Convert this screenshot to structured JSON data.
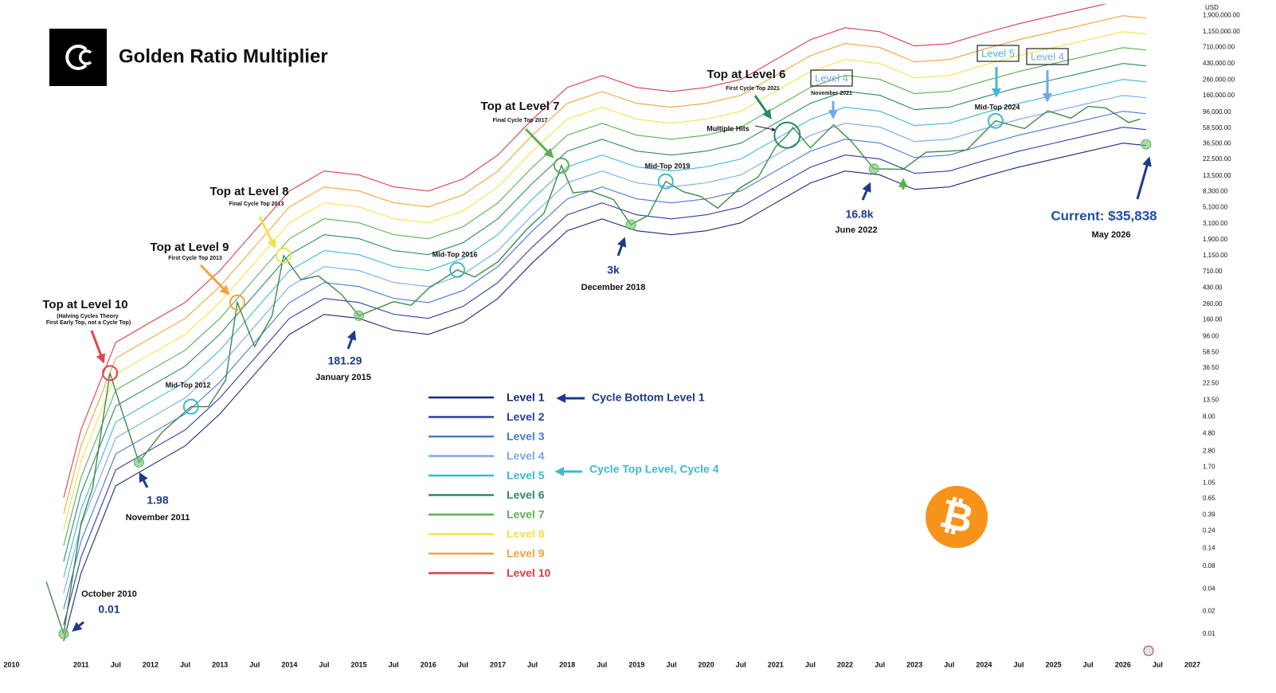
{
  "chart_data": {
    "type": "line",
    "title": "Golden Ratio Multiplier",
    "ylabel": "USD",
    "symbol": "₿",
    "ylog": true,
    "xlim": [
      "2009-11",
      "2027-01"
    ],
    "ylim": [
      0.005,
      2700000
    ],
    "xticks": [
      {
        "value": "2010-01",
        "label": "2010"
      },
      {
        "value": "2011-01",
        "label": "2011"
      },
      {
        "value": "2011-07",
        "label": "Jul"
      },
      {
        "value": "2012-01",
        "label": "2012"
      },
      {
        "value": "2012-07",
        "label": "Jul"
      },
      {
        "value": "2013-01",
        "label": "2013"
      },
      {
        "value": "2013-07",
        "label": "Jul"
      },
      {
        "value": "2014-01",
        "label": "2014"
      },
      {
        "value": "2014-07",
        "label": "Jul"
      },
      {
        "value": "2015-01",
        "label": "2015"
      },
      {
        "value": "2015-07",
        "label": "Jul"
      },
      {
        "value": "2016-01",
        "label": "2016"
      },
      {
        "value": "2016-07",
        "label": "Jul"
      },
      {
        "value": "2017-01",
        "label": "2017"
      },
      {
        "value": "2017-07",
        "label": "Jul"
      },
      {
        "value": "2018-01",
        "label": "2018"
      },
      {
        "value": "2018-07",
        "label": "Jul"
      },
      {
        "value": "2019-01",
        "label": "2019"
      },
      {
        "value": "2019-07",
        "label": "Jul"
      },
      {
        "value": "2020-01",
        "label": "2020"
      },
      {
        "value": "2020-07",
        "label": "Jul"
      },
      {
        "value": "2021-01",
        "label": "2021"
      },
      {
        "value": "2021-07",
        "label": "Jul"
      },
      {
        "value": "2022-01",
        "label": "2022"
      },
      {
        "value": "2022-07",
        "label": "Jul"
      },
      {
        "value": "2023-01",
        "label": "2023"
      },
      {
        "value": "2023-07",
        "label": "Jul"
      },
      {
        "value": "2024-01",
        "label": "2024"
      },
      {
        "value": "2024-07",
        "label": "Jul"
      },
      {
        "value": "2025-01",
        "label": "2025"
      },
      {
        "value": "2025-07",
        "label": "Jul"
      },
      {
        "value": "2026-01",
        "label": "2026"
      },
      {
        "value": "2026-07",
        "label": "Jul"
      },
      {
        "value": "2027-01",
        "label": "2027"
      }
    ],
    "yticks": [
      {
        "value": 1900000,
        "label": "1,900,000.00"
      },
      {
        "value": 1150000,
        "label": "1,150,000.00"
      },
      {
        "value": 710000,
        "label": "710,000.00"
      },
      {
        "value": 430000,
        "label": "430,000.00"
      },
      {
        "value": 260000,
        "label": "260,000.00"
      },
      {
        "value": 160000,
        "label": "160,000.00"
      },
      {
        "value": 96000,
        "label": "96,000.00"
      },
      {
        "value": 58500,
        "label": "58,500.00"
      },
      {
        "value": 36500,
        "label": "36,500.00"
      },
      {
        "value": 22500,
        "label": "22,500.00"
      },
      {
        "value": 13500,
        "label": "13,500.00"
      },
      {
        "value": 8300,
        "label": "8,300.00"
      },
      {
        "value": 5100,
        "label": "5,100.00"
      },
      {
        "value": 3100,
        "label": "3,100.00"
      },
      {
        "value": 1900,
        "label": "1,900.00"
      },
      {
        "value": 1150,
        "label": "1,150.00"
      },
      {
        "value": 710,
        "label": "710.00"
      },
      {
        "value": 430,
        "label": "430.00"
      },
      {
        "value": 260,
        "label": "260.00"
      },
      {
        "value": 160,
        "label": "160.00"
      },
      {
        "value": 96,
        "label": "96.00"
      },
      {
        "value": 58.5,
        "label": "58.50"
      },
      {
        "value": 36.5,
        "label": "36.50"
      },
      {
        "value": 22.5,
        "label": "22.50"
      },
      {
        "value": 13.5,
        "label": "13.50"
      },
      {
        "value": 8,
        "label": "8.00"
      },
      {
        "value": 4.8,
        "label": "4.80"
      },
      {
        "value": 2.8,
        "label": "2.80"
      },
      {
        "value": 1.7,
        "label": "1.70"
      },
      {
        "value": 1.05,
        "label": "1.05"
      },
      {
        "value": 0.65,
        "label": "0.65"
      },
      {
        "value": 0.39,
        "label": "0.39"
      },
      {
        "value": 0.24,
        "label": "0.24"
      },
      {
        "value": 0.14,
        "label": "0.14"
      },
      {
        "value": 0.08,
        "label": "0.08"
      },
      {
        "value": 0.04,
        "label": "0.04"
      },
      {
        "value": 0.02,
        "label": "0.02"
      },
      {
        "value": 0.01,
        "label": "0.01"
      }
    ],
    "x": [
      "2010-10",
      "2011-01",
      "2011-07",
      "2012-01",
      "2012-07",
      "2013-01",
      "2013-07",
      "2014-01",
      "2014-07",
      "2015-01",
      "2015-07",
      "2016-01",
      "2016-07",
      "2017-01",
      "2017-07",
      "2018-01",
      "2018-07",
      "2019-01",
      "2019-07",
      "2020-01",
      "2020-07",
      "2021-01",
      "2021-07",
      "2022-01",
      "2022-07",
      "2023-01",
      "2023-07",
      "2024-01",
      "2024-07",
      "2025-01",
      "2025-07",
      "2026-01",
      "2026-05"
    ],
    "series": [
      {
        "name": "Level 1",
        "color": "#1c2a7a",
        "values": [
          0.008,
          0.065,
          0.96,
          1.78,
          3.29,
          8.8,
          29.9,
          102,
          189,
          167,
          116,
          102,
          148,
          308,
          931,
          2490,
          3590,
          2490,
          2200,
          2490,
          3180,
          5870,
          10800,
          15700,
          13900,
          8910,
          9590,
          13200,
          17700,
          22600,
          28900,
          37000,
          34400
        ]
      },
      {
        "name": "Level 2",
        "color": "#2f3f9e",
        "values": [
          0.0131,
          0.106,
          1.57,
          2.91,
          5.38,
          14.4,
          48.9,
          167,
          309,
          273,
          190,
          167,
          242,
          503,
          1520,
          4070,
          5870,
          4070,
          3590,
          4070,
          5200,
          9590,
          17600,
          25700,
          22700,
          14600,
          15700,
          21600,
          28900,
          36900,
          47200,
          60500,
          56200
        ]
      },
      {
        "name": "Level 3",
        "color": "#4a78d0",
        "values": [
          0.0214,
          0.174,
          2.56,
          4.75,
          8.78,
          23.5,
          79.8,
          272,
          505,
          446,
          310,
          272,
          395,
          822,
          2490,
          6650,
          9590,
          6650,
          5870,
          6650,
          8490,
          15700,
          28800,
          41900,
          37100,
          23800,
          25600,
          35200,
          47300,
          60300,
          77200,
          98800,
          91800
        ]
      },
      {
        "name": "Level 4",
        "color": "#78a8ea",
        "values": [
          0.0349,
          0.284,
          4.19,
          7.77,
          14.4,
          38.4,
          130,
          445,
          825,
          729,
          506,
          445,
          646,
          1340,
          4060,
          10900,
          15700,
          10900,
          9600,
          10900,
          13900,
          25600,
          47100,
          68500,
          60600,
          38900,
          41800,
          57600,
          77200,
          98600,
          126000,
          161000,
          150000
        ]
      },
      {
        "name": "Level 5",
        "color": "#3fb8d0",
        "values": [
          0.057,
          0.463,
          6.84,
          12.7,
          23.5,
          62.7,
          213,
          727,
          1350,
          1190,
          827,
          727,
          1060,
          2200,
          6640,
          17800,
          25600,
          17800,
          15700,
          17800,
          22700,
          41900,
          77000,
          112000,
          99100,
          63500,
          68400,
          94100,
          126000,
          161000,
          206000,
          264000,
          245000
        ]
      },
      {
        "name": "Level 6",
        "color": "#2a8a6a",
        "values": [
          0.0932,
          0.757,
          11.2,
          20.7,
          38.3,
          103,
          348,
          1190,
          2200,
          1950,
          1350,
          1190,
          1720,
          3590,
          10800,
          29000,
          41800,
          29000,
          25600,
          29000,
          37000,
          68400,
          126000,
          183000,
          162000,
          104000,
          112000,
          154000,
          206000,
          263000,
          337000,
          431000,
          401000
        ]
      },
      {
        "name": "Level 7",
        "color": "#5ab04e",
        "values": [
          0.152,
          1.24,
          18.3,
          33.9,
          62.6,
          167,
          569,
          1940,
          3600,
          3180,
          2210,
          1940,
          2820,
          5860,
          17700,
          47400,
          68300,
          47400,
          41800,
          47400,
          60500,
          112000,
          206000,
          299000,
          265000,
          170000,
          183000,
          251000,
          337000,
          430000,
          550000,
          704000,
          655000
        ]
      },
      {
        "name": "Level 8",
        "color": "#f2e24a",
        "values": [
          0.249,
          2.02,
          29.9,
          55.4,
          102,
          274,
          930,
          3170,
          5880,
          5190,
          3610,
          3170,
          4600,
          9580,
          29000,
          77400,
          112000,
          77400,
          68400,
          77400,
          98900,
          183000,
          336000,
          488000,
          432000,
          277000,
          298000,
          411000,
          550000,
          703000,
          899000,
          1150000,
          1070000
        ]
      },
      {
        "name": "Level 9",
        "color": "#f2a23c",
        "values": [
          0.406,
          3.3,
          48.8,
          90.4,
          167,
          447,
          1520,
          5180,
          9600,
          8480,
          5890,
          5180,
          7520,
          15600,
          47300,
          126000,
          182000,
          126000,
          112000,
          126000,
          162000,
          298000,
          549000,
          798000,
          706000,
          453000,
          487000,
          671000,
          899000,
          1150000,
          1470000,
          1880000,
          1750000
        ]
      },
      {
        "name": "Level 10",
        "color": "#dc3c48",
        "values": [
          0.664,
          5.4,
          79.7,
          148,
          273,
          730,
          2480,
          8470,
          15700,
          13900,
          9630,
          8470,
          12300,
          25600,
          77300,
          206000,
          298000,
          206000,
          182000,
          206000,
          264000,
          487000,
          896000,
          1300000,
          1150000,
          740000,
          796000,
          1100000,
          1470000,
          1880000,
          2400000,
          3070000,
          2850000
        ]
      },
      {
        "color": "#3d8b47",
        "x": [
          "2010-07",
          "2010-10",
          "2011-01",
          "2011-03",
          "2011-06",
          "2011-08",
          "2011-11",
          "2012-03",
          "2012-08",
          "2012-11",
          "2013-02",
          "2013-04",
          "2013-07",
          "2013-10",
          "2013-12",
          "2014-03",
          "2014-06",
          "2014-10",
          "2015-01",
          "2015-07",
          "2015-10",
          "2016-01",
          "2016-06",
          "2016-09",
          "2017-01",
          "2017-06",
          "2017-09",
          "2017-12",
          "2018-02",
          "2018-05",
          "2018-09",
          "2018-12",
          "2019-03",
          "2019-06",
          "2019-09",
          "2019-12",
          "2020-03",
          "2020-07",
          "2020-10",
          "2021-01",
          "2021-03",
          "2021-04",
          "2021-07",
          "2021-11",
          "2022-02",
          "2022-06",
          "2022-11",
          "2023-03",
          "2023-07",
          "2023-10",
          "2024-03",
          "2024-08",
          "2024-12",
          "2025-04",
          "2025-07",
          "2025-10",
          "2026-02",
          "2026-04"
        ],
        "values": [
          0.05,
          0.01,
          0.3,
          0.9,
          31,
          10,
          1.98,
          5,
          11,
          11,
          25,
          273,
          70,
          180,
          1160,
          550,
          620,
          350,
          181.29,
          280,
          250,
          420,
          746,
          600,
          950,
          2600,
          4300,
          18600,
          8000,
          8500,
          6500,
          3000,
          4000,
          11400,
          8300,
          7200,
          5000,
          9500,
          13000,
          33000,
          47300,
          60000,
          32000,
          65000,
          40000,
          16800,
          16500,
          28000,
          29000,
          30000,
          73600,
          58000,
          100000,
          80000,
          115000,
          110000,
          70000,
          78000
        ]
      }
    ],
    "annotations": [
      {
        "label": "Top at Level 10",
        "notes": [
          "(Halving Cycles Theory",
          "First Early Top, not a Cycle Top)"
        ],
        "x": "2011-06",
        "value": 31,
        "color": "#e0454f"
      },
      {
        "label": "Mid-Top 2012",
        "x": "2012-08",
        "value": 11,
        "color": "#3fb8d0"
      },
      {
        "label": "1.98",
        "date": "November 2011",
        "x": "2011-11",
        "value": 1.98,
        "color": "#6fbf6a"
      },
      {
        "label": "Top at Level 9",
        "notes": [
          "First Cycle Top 2013"
        ],
        "x": "2013-04",
        "value": 273,
        "color": "#f2a23c"
      },
      {
        "label": "Top at Level 8",
        "notes": [
          "Final Cycle Top 2013"
        ],
        "x": "2013-12",
        "value": 1160,
        "color": "#f2e24a"
      },
      {
        "label": "181.29",
        "date": "January 2015",
        "x": "2015-01",
        "value": 181.29,
        "color": "#6fbf6a"
      },
      {
        "label": "Mid-Top 2016",
        "x": "2016-06",
        "value": 746,
        "color": "#3fb8d0"
      },
      {
        "label": "Top at Level 7",
        "notes": [
          "Final Cycle Top 2017"
        ],
        "x": "2017-12",
        "value": 18600,
        "color": "#5ab04e"
      },
      {
        "label": "3k",
        "date": "December 2018",
        "x": "2018-12",
        "value": 3000,
        "color": "#6fbf6a"
      },
      {
        "label": "Mid-Top 2019",
        "x": "2019-06",
        "value": 11400,
        "color": "#3fb8d0"
      },
      {
        "label": "Top at Level 6",
        "notes": [
          "First Cycle Top 2021"
        ],
        "x": "2021-03",
        "value": 47300,
        "color": "#2a8a6a"
      },
      {
        "label": "16.8k",
        "date": "June 2022",
        "x": "2022-06",
        "value": 16800,
        "color": "#6fbf6a"
      },
      {
        "label": "Mid-Top 2024",
        "x": "2024-03",
        "value": 73600,
        "color": "#3fb8d0"
      },
      {
        "label": "Current: $35,838",
        "date": "May 2026",
        "x": "2026-05",
        "value": 35838,
        "color": "#6fbf6a"
      },
      {
        "label": "0.01",
        "date": "October 2010",
        "x": "2010-10",
        "value": 0.01,
        "color": "#6fbf6a"
      }
    ],
    "callouts": [
      "Multiple Hits",
      "Level 4",
      "November 2021",
      "Level 5",
      "Level 4",
      "Cycle Bottom Level 1",
      "Cycle Top Level, Cycle 4"
    ]
  }
}
